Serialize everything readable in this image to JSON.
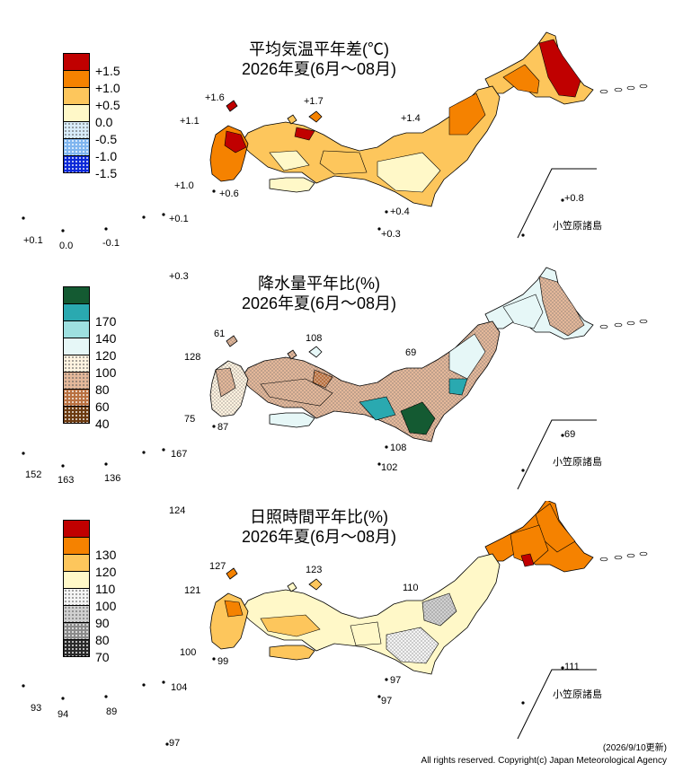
{
  "credit": {
    "update": "(2026/9/10更新)",
    "copyright": "All rights reserved. Copyright(c) Japan Meteorological Agency"
  },
  "islands_label": "小笠原諸島",
  "panels": [
    {
      "id": "temperature",
      "title_line1": "平均気温平年差(℃)",
      "title_line2": "2026年夏(6月～08月)",
      "legend": [
        {
          "label": "+1.5",
          "color": "#c00000",
          "pattern": "solid"
        },
        {
          "label": "+1.0",
          "color": "#f58200",
          "pattern": "solid"
        },
        {
          "label": "+0.5",
          "color": "#fdc65c",
          "pattern": "solid"
        },
        {
          "label": "0.0",
          "color": "#fff8c8",
          "pattern": "solid"
        },
        {
          "label": "-0.5",
          "color": "#d8ecfa",
          "pattern": "dots"
        },
        {
          "label": "-1.0",
          "color": "#7fb5ef",
          "pattern": "dots"
        },
        {
          "label": "-1.5",
          "color": "#0a28d8",
          "pattern": "dots"
        }
      ],
      "stations": [
        {
          "label": "+1.6"
        },
        {
          "label": "+1.7"
        },
        {
          "label": "+1.1"
        },
        {
          "label": "+1.4"
        },
        {
          "label": "+1.0"
        },
        {
          "label": "+0.6"
        },
        {
          "label": "+0.4"
        },
        {
          "label": "+0.3"
        },
        {
          "label": "+0.8"
        },
        {
          "label": "+0.1"
        },
        {
          "label": "+0.1"
        },
        {
          "label": "0.0"
        },
        {
          "label": "-0.1"
        },
        {
          "label": "+0.3"
        }
      ]
    },
    {
      "id": "precipitation",
      "title_line1": "降水量平年比(%)",
      "title_line2": "2026年夏(6月～08月)",
      "legend": [
        {
          "label": "",
          "color": "#145a32",
          "pattern": "solid"
        },
        {
          "label": "170",
          "color": "#2aa9b0",
          "pattern": "solid"
        },
        {
          "label": "140",
          "color": "#9ee0e0",
          "pattern": "solid"
        },
        {
          "label": "120",
          "color": "#e6f7f7",
          "pattern": "solid"
        },
        {
          "label": "100",
          "color": "#fff3e0",
          "pattern": "dots"
        },
        {
          "label": "80",
          "color": "#e4b89a",
          "pattern": "dots"
        },
        {
          "label": "60",
          "color": "#b87040",
          "pattern": "dots"
        },
        {
          "label": "40",
          "color": "#6b3a10",
          "pattern": "dots"
        }
      ],
      "stations": [
        {
          "label": "61"
        },
        {
          "label": "108"
        },
        {
          "label": "128"
        },
        {
          "label": "69"
        },
        {
          "label": "75"
        },
        {
          "label": "87"
        },
        {
          "label": "108"
        },
        {
          "label": "102"
        },
        {
          "label": "69"
        },
        {
          "label": "152"
        },
        {
          "label": "163"
        },
        {
          "label": "136"
        },
        {
          "label": "167"
        },
        {
          "label": "124"
        }
      ]
    },
    {
      "id": "sunshine",
      "title_line1": "日照時間平年比(%)",
      "title_line2": "2026年夏(6月～08月)",
      "legend": [
        {
          "label": "",
          "color": "#c00000",
          "pattern": "solid"
        },
        {
          "label": "130",
          "color": "#f58200",
          "pattern": "solid"
        },
        {
          "label": "120",
          "color": "#fdc65c",
          "pattern": "solid"
        },
        {
          "label": "110",
          "color": "#fff8c8",
          "pattern": "solid"
        },
        {
          "label": "100",
          "color": "#f4f4f4",
          "pattern": "dots"
        },
        {
          "label": "90",
          "color": "#d0d0d0",
          "pattern": "dots"
        },
        {
          "label": "80",
          "color": "#8a8a8a",
          "pattern": "dots"
        },
        {
          "label": "70",
          "color": "#2a2a2a",
          "pattern": "dots"
        }
      ],
      "stations": [
        {
          "label": "127"
        },
        {
          "label": "123"
        },
        {
          "label": "121"
        },
        {
          "label": "110"
        },
        {
          "label": "100"
        },
        {
          "label": "99"
        },
        {
          "label": "97"
        },
        {
          "label": "97"
        },
        {
          "label": "111"
        },
        {
          "label": "93"
        },
        {
          "label": "94"
        },
        {
          "label": "89"
        },
        {
          "label": "104"
        },
        {
          "label": "97"
        }
      ]
    }
  ]
}
